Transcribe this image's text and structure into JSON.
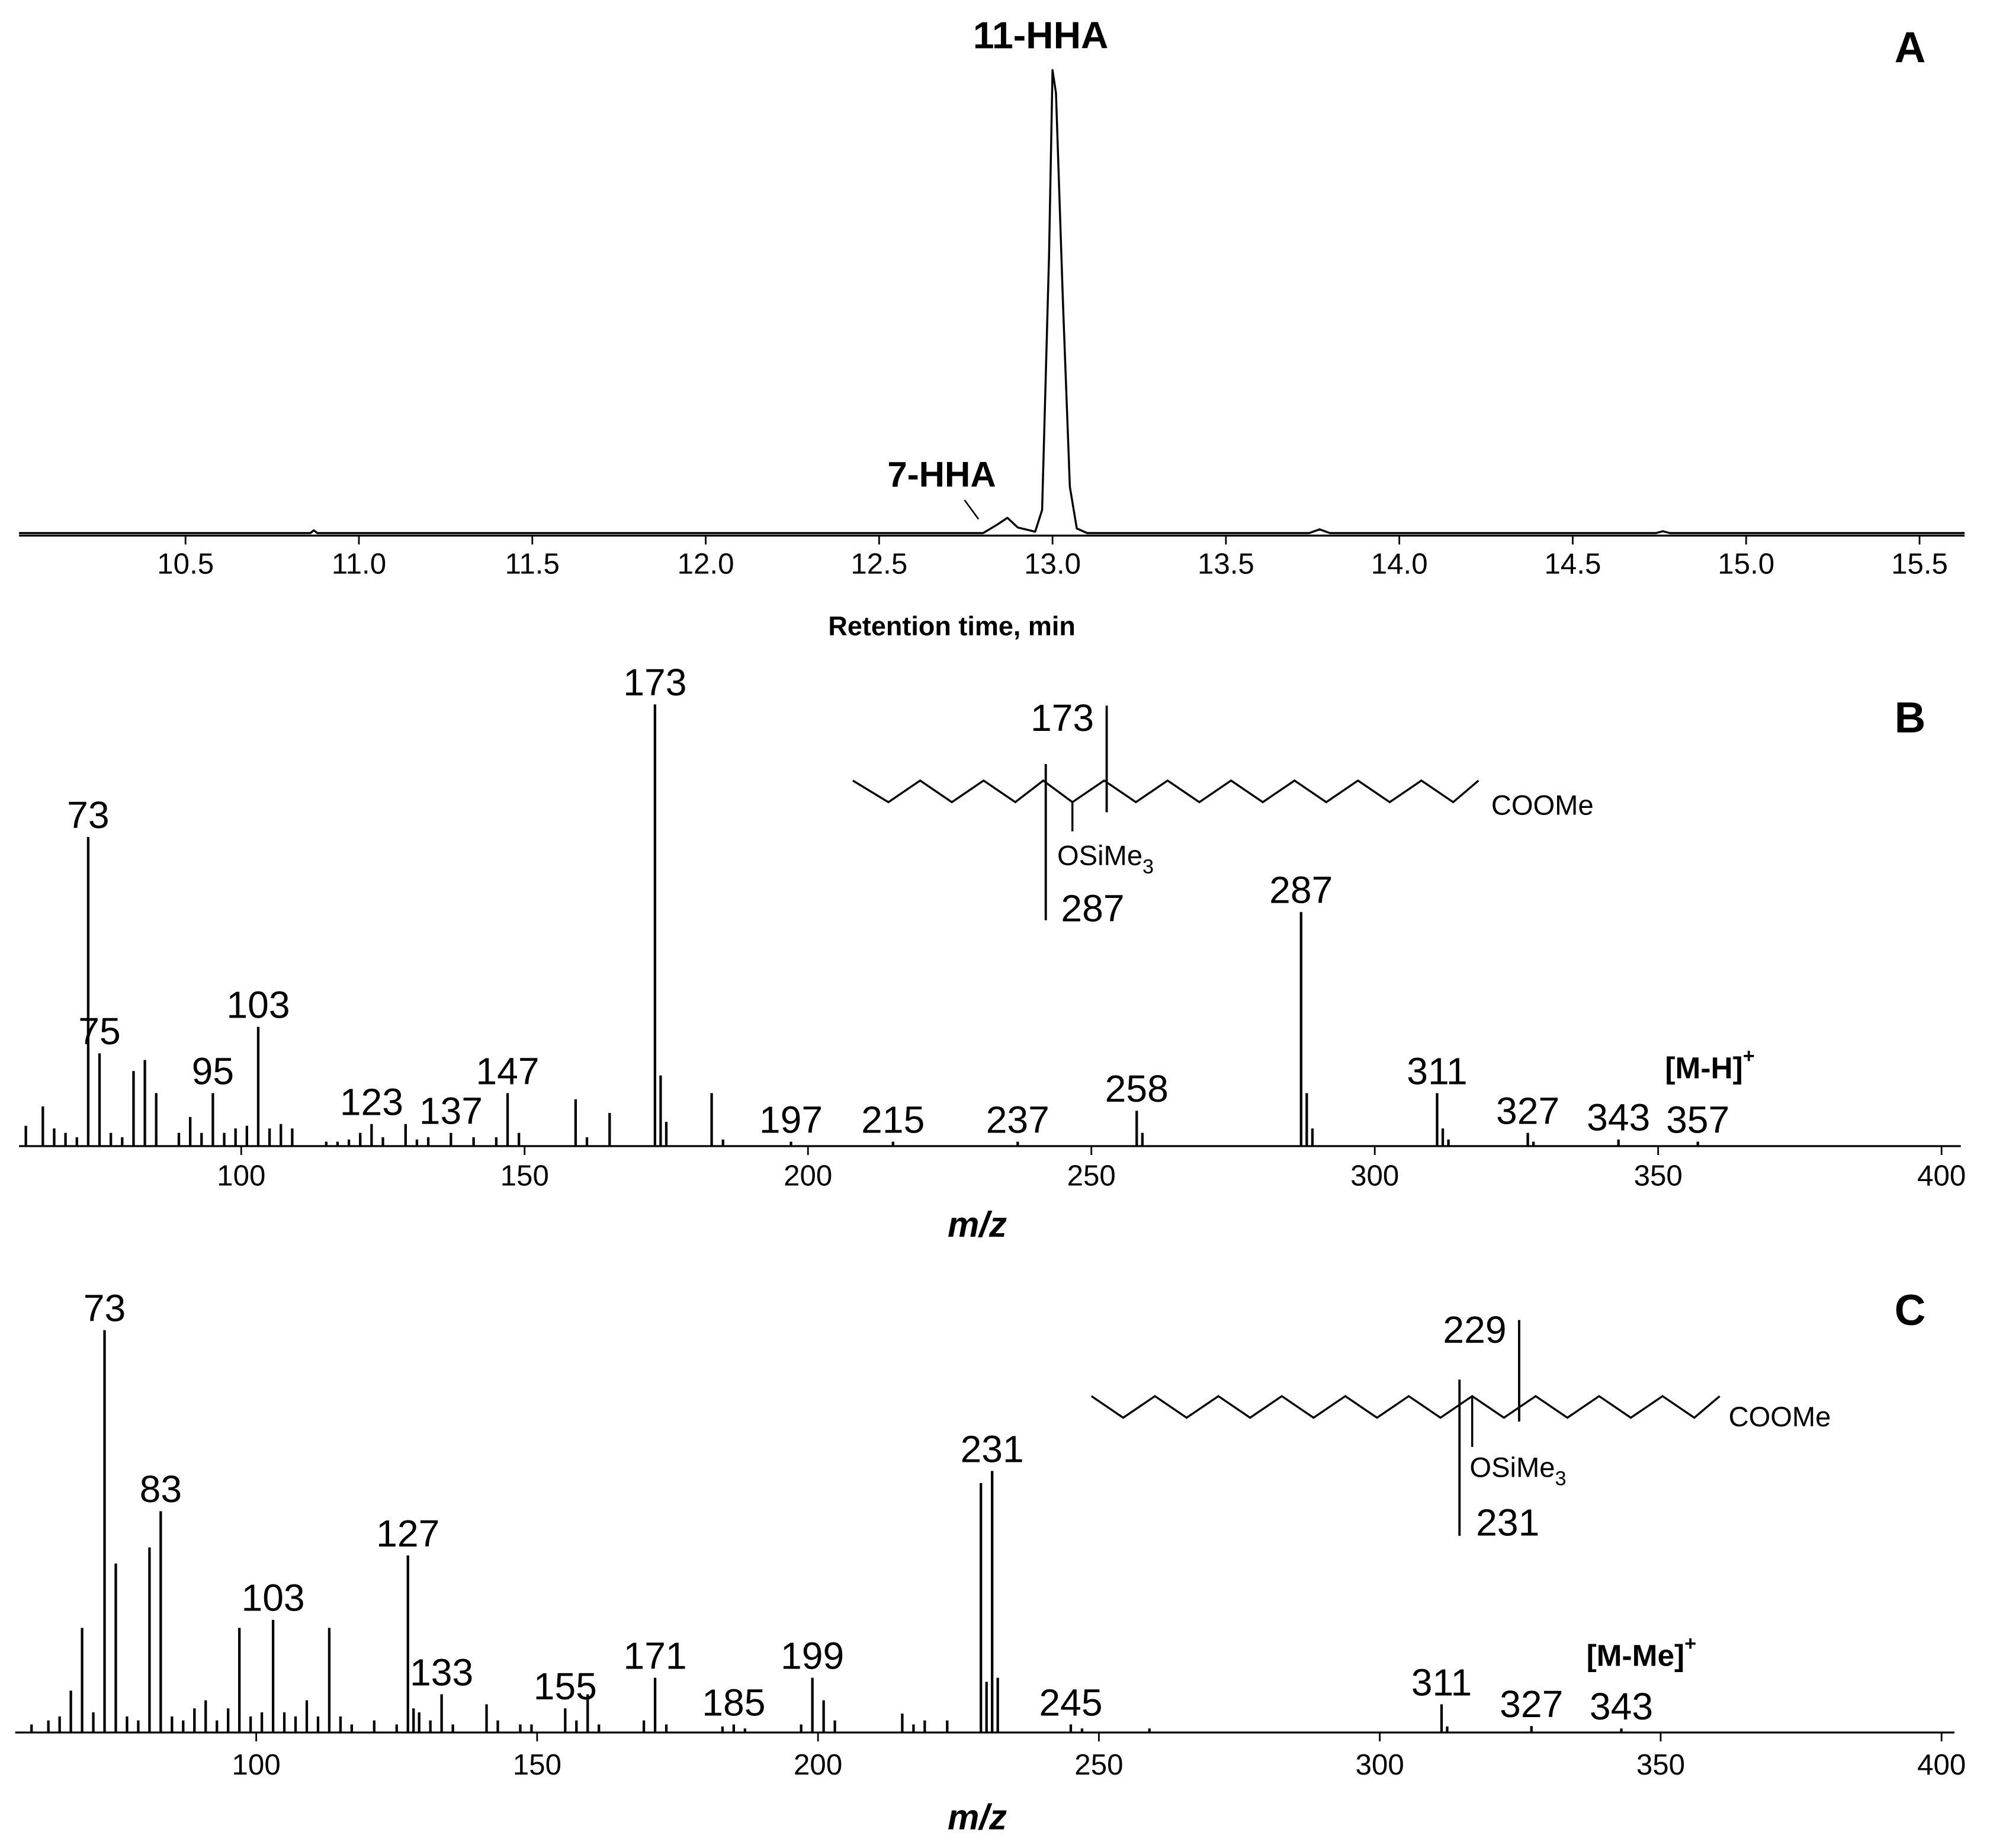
{
  "chart_data": [
    {
      "type": "line",
      "panel": "A",
      "xlabel": "Retention time, min",
      "annotations": [
        "11-HHA",
        "7-HHA"
      ],
      "x": [
        10.02,
        10.86,
        10.87,
        10.88,
        12.8,
        12.84,
        12.87,
        12.9,
        12.95,
        12.97,
        12.99,
        13.0,
        13.01,
        13.03,
        13.05,
        13.07,
        13.1,
        13.74,
        13.77,
        13.8,
        14.74,
        14.76,
        14.78,
        15.63
      ],
      "values": [
        0,
        0,
        0.6,
        0,
        0,
        1.8,
        3.3,
        1.2,
        0.3,
        5,
        60,
        100,
        95,
        50,
        10,
        1,
        0,
        0,
        0.8,
        0,
        0,
        0.4,
        0,
        0
      ],
      "color": "#000000",
      "xlim": [
        10.02,
        15.63
      ],
      "ylim": [
        0,
        105
      ],
      "xticks": [
        10.5,
        {
          "value": 11,
          "label": "11.0"
        },
        11.5,
        {
          "value": 12,
          "label": "12.0"
        },
        12.5,
        {
          "value": 13,
          "label": "13.0"
        },
        13.5,
        {
          "value": 14,
          "label": "14.0"
        },
        14.5,
        {
          "value": 15,
          "label": "15.0"
        },
        15.5
      ]
    },
    {
      "type": "bar",
      "panel": "B",
      "xlabel": "m/z",
      "ion": "[M-H]",
      "ion_superscript": "+",
      "structure": {
        "cleavage_labels": [
          "173",
          "287"
        ],
        "group": "OSiMe",
        "group_subscript": "3",
        "end_group": "COOMe"
      },
      "x": [
        62,
        65,
        67,
        69,
        71,
        73,
        75,
        77,
        79,
        81,
        83,
        85,
        89,
        91,
        93,
        95,
        97,
        99,
        101,
        103,
        105,
        107,
        109,
        115,
        117,
        119,
        121,
        123,
        125,
        129,
        131,
        133,
        137,
        141,
        145,
        147,
        149,
        159,
        161,
        165,
        173,
        174,
        175,
        183,
        185,
        197,
        215,
        237,
        258,
        259,
        287,
        288,
        289,
        311,
        312,
        313,
        327,
        328,
        343,
        357
      ],
      "values": [
        4.6,
        9,
        4,
        3,
        2,
        70,
        21,
        3,
        2,
        17,
        19.5,
        12,
        3,
        6.6,
        3,
        12,
        3,
        4,
        4.6,
        27,
        4,
        5,
        4,
        1,
        1,
        1.5,
        3,
        5,
        2,
        5,
        1.5,
        2,
        3,
        2,
        2,
        12,
        3,
        10.6,
        2,
        7.5,
        100,
        16,
        5.5,
        12,
        1.5,
        1,
        1,
        1,
        8,
        3,
        53,
        12,
        4,
        12,
        4,
        1.5,
        3,
        1,
        1.5,
        1
      ],
      "peak_labels": [
        null,
        null,
        null,
        null,
        null,
        "73",
        "75",
        null,
        null,
        null,
        null,
        null,
        null,
        null,
        null,
        "95",
        null,
        null,
        null,
        "103",
        null,
        null,
        null,
        null,
        null,
        null,
        null,
        "123",
        null,
        null,
        null,
        null,
        "137",
        null,
        null,
        "147",
        null,
        null,
        null,
        null,
        "173",
        null,
        null,
        null,
        null,
        "197",
        "215",
        "237",
        "258",
        null,
        "287",
        null,
        null,
        "311",
        null,
        null,
        "327",
        null,
        "343",
        "357"
      ],
      "color": "#000000",
      "xlim": [
        60.8,
        403.4
      ],
      "ylim": [
        0,
        100
      ],
      "xticks": [
        100,
        150,
        200,
        250,
        300,
        350,
        400
      ]
    },
    {
      "type": "bar",
      "panel": "C",
      "xlabel": "m/z",
      "ion": "[M-Me]",
      "ion_superscript": "+",
      "structure": {
        "cleavage_labels": [
          "229",
          "231"
        ],
        "group": "OSiMe",
        "group_subscript": "3",
        "end_group": "COOMe"
      },
      "x": [
        60,
        63,
        65,
        67,
        69,
        71,
        73,
        75,
        77,
        79,
        81,
        83,
        85,
        87,
        89,
        91,
        93,
        95,
        97,
        99,
        101,
        103,
        105,
        107,
        109,
        111,
        113,
        115,
        117,
        121,
        125,
        127,
        128,
        129,
        131,
        133,
        135,
        141,
        143,
        147,
        149,
        155,
        157,
        159,
        161,
        169,
        171,
        173,
        183,
        185,
        187,
        197,
        199,
        201,
        203,
        215,
        217,
        219,
        223,
        229,
        230,
        231,
        232,
        245,
        247,
        259,
        311,
        312,
        327,
        343
      ],
      "values": [
        2,
        3,
        4,
        10.4,
        26,
        5,
        100,
        42,
        4,
        3,
        46,
        55,
        4,
        3,
        6,
        8,
        3,
        6,
        26,
        4,
        5,
        28,
        5,
        4,
        8,
        4,
        26,
        4,
        2,
        3,
        2,
        44,
        6,
        5,
        3,
        9.5,
        2,
        7,
        3,
        2,
        2,
        6,
        3,
        9.5,
        2,
        3,
        13.6,
        2,
        1.5,
        2,
        1,
        2,
        13.6,
        8,
        3,
        4.7,
        2,
        3,
        3,
        62,
        12.6,
        65,
        13.6,
        2,
        1,
        1,
        7,
        1.5,
        1.6,
        1
      ],
      "peak_labels": [
        null,
        null,
        null,
        null,
        null,
        null,
        "73",
        null,
        null,
        null,
        null,
        "83",
        null,
        null,
        null,
        null,
        null,
        null,
        null,
        null,
        null,
        "103",
        null,
        null,
        null,
        null,
        null,
        null,
        null,
        null,
        null,
        "127",
        null,
        null,
        null,
        "133",
        null,
        null,
        null,
        null,
        null,
        "155",
        null,
        null,
        null,
        null,
        "171",
        null,
        null,
        "185",
        null,
        null,
        "199",
        null,
        null,
        null,
        null,
        null,
        null,
        null,
        null,
        "231",
        null,
        "245",
        null,
        null,
        "311",
        null,
        "327",
        "343"
      ],
      "color": "#000000",
      "xlim": [
        57.1,
        402.3
      ],
      "ylim": [
        0,
        100
      ],
      "xticks": [
        100,
        150,
        200,
        250,
        300,
        350,
        400
      ]
    }
  ]
}
